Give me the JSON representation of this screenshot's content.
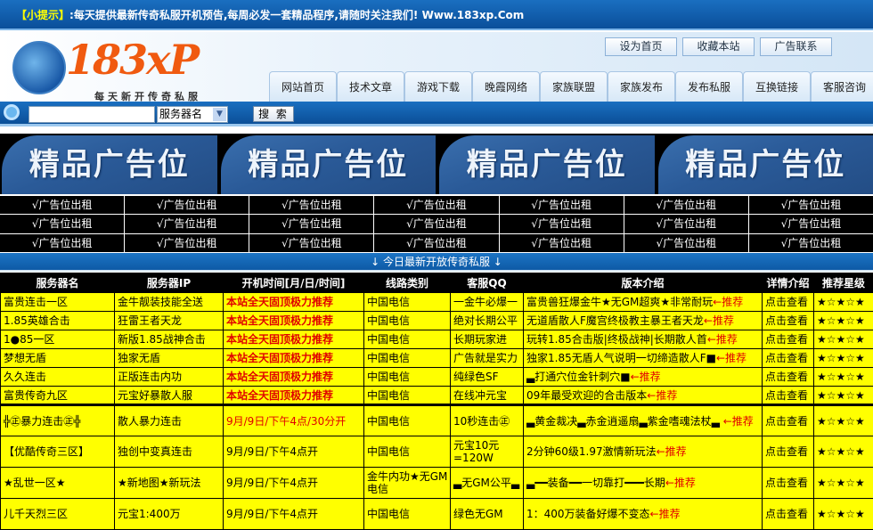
{
  "tip": {
    "label": "【小提示】",
    "text": ":每天提供最新传奇私服开机预告,每周必发一套精品程序,请随时关注我们! Www.183xp.Com"
  },
  "logo": {
    "text": "183xP",
    "sub": "每天新开传奇私服"
  },
  "top_links": [
    "设为首页",
    "收藏本站",
    "广告联系"
  ],
  "nav": [
    "网站首页",
    "技术文章",
    "游戏下载",
    "晚霞网络",
    "家族联盟",
    "家族发布",
    "发布私服",
    "互换链接",
    "客服咨询"
  ],
  "search": {
    "value": "",
    "select": "服务器名",
    "button": "搜 索"
  },
  "banners": [
    "精品广告位",
    "精品广告位",
    "精品广告位",
    "精品广告位"
  ],
  "ad_cell": "√广告位出租",
  "today_label": "↓ 今日最新开放传奇私服 ↓",
  "table": {
    "headers": [
      "服务器名",
      "服务器IP",
      "开机时间[月/日/时间]",
      "线路类别",
      "客服QQ",
      "版本介绍",
      "详情介绍",
      "推荐星级"
    ],
    "rows": [
      [
        "富贵连击一区",
        "金牛靓装技能全送",
        "本站全天固顶极力推荐",
        "中国电信",
        "一金牛必爆一",
        "富贵兽狂爆金牛★无GM超爽★非常耐玩",
        "←推荐",
        "点击查看",
        "★☆★☆★"
      ],
      [
        "1.85英雄合击",
        "狂雷王者天龙",
        "本站全天固顶极力推荐",
        "中国电信",
        "绝对长期公平",
        "无道盾散人F魔宫终极教主暴王者天龙",
        "←推荐",
        "点击查看",
        "★☆★☆★"
      ],
      [
        "1●85一区",
        "新版1.85战神合击",
        "本站全天固顶极力推荐",
        "中国电信",
        "长期玩家进",
        "玩转1.85合击版|终极战神|长期散人首",
        "←推荐",
        "点击查看",
        "★☆★☆★"
      ],
      [
        "梦想无盾",
        "独家无盾",
        "本站全天固顶极力推荐",
        "中国电信",
        "广告就是实力",
        "独家1.85无盾人气说明一切缔造散人F■",
        "←推荐",
        "点击查看",
        "★☆★☆★"
      ],
      [
        "久久连击",
        "正版连击内功",
        "本站全天固顶极力推荐",
        "中国电信",
        "纯绿色SF",
        "▃打通穴位金针刺穴■",
        "←推荐",
        "点击查看",
        "★☆★☆★"
      ],
      [
        "富贵传奇九区",
        "元宝好暴散人服",
        "本站全天固顶极力推荐",
        "中国电信",
        "在线冲元宝",
        "09年最受欢迎的合击版本",
        "←推荐",
        "点击查看",
        "★☆★☆★"
      ],
      [
        "╬㊣暴力连击㊣╬",
        "散人暴力连击",
        "9月/9日/下午4点/30分开",
        "中国电信",
        "10秒连击㊣",
        "▃黄金裁决▃赤金逍遥扇▃紫金嗜魂法杖▃ ",
        "←推荐",
        "点击查看",
        "★☆★☆★"
      ],
      [
        "【优酷传奇三区】",
        "独创中变真连击",
        "9月/9日/下午4点开",
        "中国电信",
        "元宝10元=120W",
        "2分钟60级1.97激情新玩法",
        "←推荐",
        "点击查看",
        "★☆★☆★"
      ],
      [
        "★乱世一区★",
        "★新地图★新玩法",
        "9月/9日/下午4点开",
        "金牛内功★无GM电信",
        "▃无GM公平▃",
        "▃━━装备━━一切靠打━━━长期",
        "←推荐",
        "点击查看",
        "★☆★☆★"
      ],
      [
        "儿千天烈三区",
        "元宝1:400万",
        "9月/9日/下午4点开",
        "中国电信",
        "绿色无GM",
        "1：400万装备好爆不变态",
        "←推荐",
        "点击查看",
        "★☆★☆★"
      ]
    ]
  }
}
